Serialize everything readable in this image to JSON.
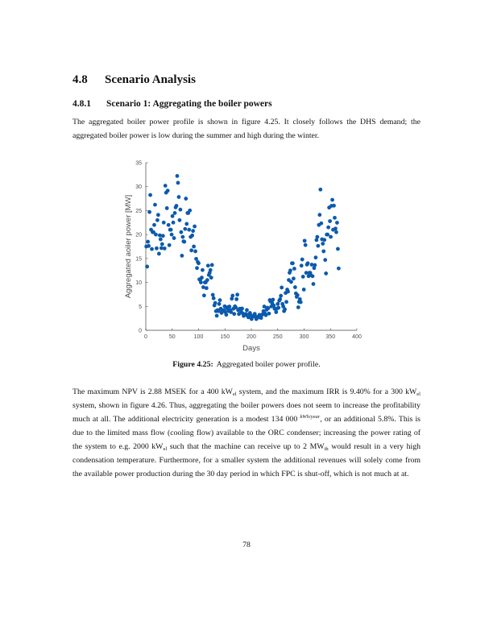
{
  "section": {
    "number": "4.8",
    "title": "Scenario Analysis"
  },
  "subsection": {
    "number": "4.8.1",
    "title": "Scenario 1: Aggregating the boiler powers"
  },
  "paragraph1": "The aggregated boiler power profile is shown in figure 4.25. It closely follows the DHS demand; the aggregated boiler power is low during the summer and high during the winter.",
  "paragraph2": [
    {
      "type": "text",
      "text": "The maximum NPV is 2.88 MSEK for a 400 kW"
    },
    {
      "type": "sub",
      "text": "el"
    },
    {
      "type": "text",
      "text": " system, and the maximum IRR is 9.40% for a 300 kW"
    },
    {
      "type": "sub",
      "text": "el"
    },
    {
      "type": "text",
      "text": " system, shown in figure 4.26. Thus, aggregating the boiler powers does not seem to increase the profitability much at all. The additional electricity generation is a modest 134 000 "
    },
    {
      "type": "frac",
      "text": "kWh/year"
    },
    {
      "type": "text",
      "text": ", or an additional 5.8%. This is due to the limited mass flow (cooling flow) available to the ORC condenser; increasing the power rating of the system to e.g. 2000 kW"
    },
    {
      "type": "sub",
      "text": "el"
    },
    {
      "type": "text",
      "text": " such that the machine can receive up to 2 MW"
    },
    {
      "type": "sub",
      "text": "th"
    },
    {
      "type": "text",
      "text": " would result in a very high condensation temperature. Furthermore, for a smaller system the additional revenues will solely come from the available power production during the 30 day period in which FPC is shut-off, which is not much at at."
    }
  ],
  "figure": {
    "label": "Figure 4.25:",
    "caption": "Aggregated boiler power profile."
  },
  "page_number": "78",
  "chart_data": {
    "type": "scatter",
    "title": "",
    "xlabel": "Days",
    "ylabel": "Aggregated aoiler power [MW]",
    "xlim": [
      0,
      400
    ],
    "ylim": [
      0,
      35
    ],
    "xticks": [
      "0",
      "50",
      "100",
      "150",
      "200",
      "250",
      "300",
      "350",
      "400"
    ],
    "yticks": [
      "0",
      "5",
      "10",
      "15",
      "20",
      "25",
      "30",
      "35"
    ],
    "grid": false,
    "color": "#0b5aad",
    "x": [
      1,
      4,
      7,
      10,
      13,
      16,
      19,
      22,
      25,
      28,
      31,
      34,
      37,
      40,
      43,
      46,
      49,
      52,
      55,
      58,
      61,
      64,
      67,
      70,
      73,
      76,
      79,
      82,
      85,
      88,
      91,
      94,
      97,
      100,
      103,
      106,
      109,
      112,
      115,
      118,
      121,
      124,
      127,
      130,
      133,
      136,
      139,
      142,
      145,
      148,
      151,
      154,
      157,
      160,
      163,
      166,
      169,
      172,
      175,
      178,
      181,
      184,
      187,
      190,
      193,
      196,
      199,
      202,
      205,
      208,
      211,
      214,
      217,
      220,
      223,
      226,
      229,
      232,
      235,
      238,
      241,
      244,
      247,
      250,
      253,
      256,
      259,
      262,
      265,
      268,
      271,
      274,
      277,
      280,
      283,
      286,
      289,
      292,
      295,
      298,
      301,
      304,
      307,
      310,
      313,
      316,
      319,
      322,
      325,
      328,
      331,
      334,
      337,
      340,
      343,
      346,
      349,
      352,
      355,
      358,
      361,
      364
    ],
    "y": [
      17.5,
      18.5,
      24.7,
      21,
      20.5,
      22,
      20,
      23,
      16,
      19,
      18,
      22.5,
      30.2,
      25.5,
      22,
      21,
      20,
      22.5,
      24.5,
      26,
      30.8,
      23,
      20.5,
      19.5,
      18.5,
      27.5,
      24.5,
      21,
      19.5,
      19.8,
      17.5,
      16.5,
      13,
      14,
      10.5,
      11,
      9,
      10,
      8.8,
      13.5,
      12,
      11,
      7.4,
      5.2,
      4,
      4.2,
      5.5,
      4.5,
      4,
      4.2,
      3.8,
      4.6,
      4,
      4.2,
      6.6,
      4.5,
      5,
      6.5,
      4.2,
      4.5,
      3.8,
      3.5,
      3.2,
      3.4,
      3,
      3.3,
      3.1,
      3,
      3,
      2.9,
      2.8,
      2.7,
      3,
      3.2,
      4,
      3.5,
      4.3,
      4.6,
      6.3,
      5,
      6.4,
      4.5,
      3.8,
      5.5,
      6.2,
      7.2,
      5.5,
      4,
      7.8,
      8.5,
      10.5,
      12.5,
      14,
      10.8,
      9,
      7,
      4.8,
      6.5,
      13.5,
      11.2,
      18.7,
      12,
      14,
      12,
      11.5,
      11.3,
      13,
      15.2,
      19.5,
      22,
      29.4,
      19,
      16.5,
      14.7,
      20,
      21.5,
      22.8,
      26,
      21,
      23.5,
      20.5,
      17
    ]
  }
}
